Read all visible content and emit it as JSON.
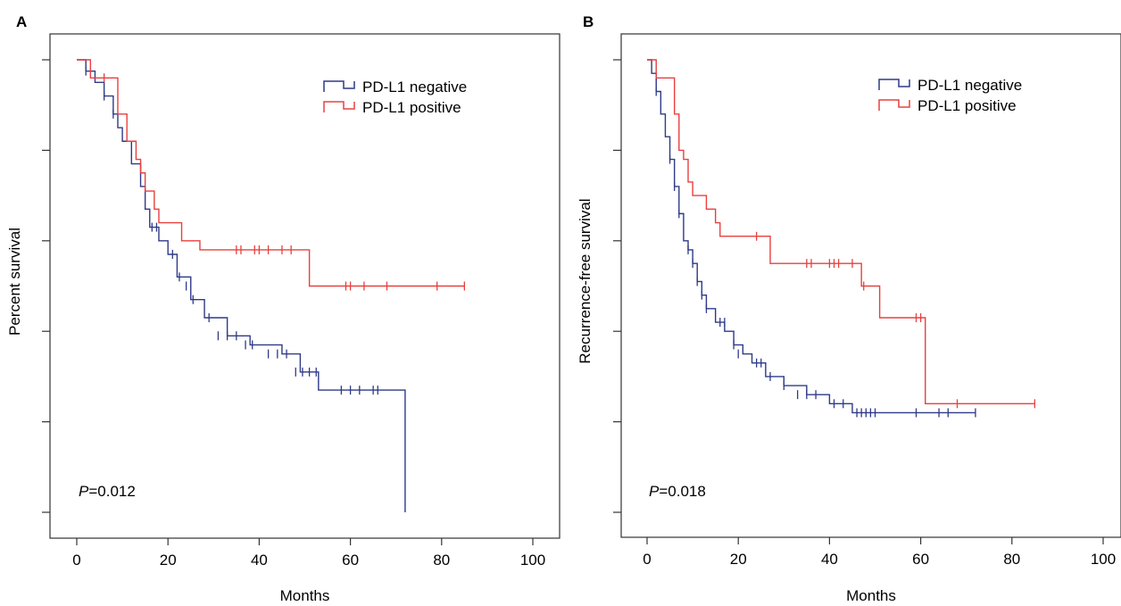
{
  "chart_data": [
    {
      "type": "line",
      "panel_label": "A",
      "xlabel": "Months",
      "ylabel": "Percent survival",
      "xlim": [
        0,
        100
      ],
      "ylim": [
        0,
        1
      ],
      "x_ticks": [
        0,
        20,
        40,
        60,
        80,
        100
      ],
      "y_ticks_unlabeled": [
        0,
        0.2,
        0.4,
        0.6,
        0.8,
        1.0
      ],
      "grid": false,
      "legend_position": "top-right",
      "annotation": {
        "italic": "P",
        "text": "=0.012"
      },
      "series": [
        {
          "name": "PD-L1 negative",
          "color": "#2e3a87",
          "steps": [
            [
              0,
              1.0
            ],
            [
              2,
              0.975
            ],
            [
              4,
              0.95
            ],
            [
              6,
              0.92
            ],
            [
              8,
              0.88
            ],
            [
              9,
              0.85
            ],
            [
              10,
              0.82
            ],
            [
              12,
              0.77
            ],
            [
              14,
              0.72
            ],
            [
              15,
              0.67
            ],
            [
              16,
              0.63
            ],
            [
              18,
              0.6
            ],
            [
              20,
              0.57
            ],
            [
              22,
              0.52
            ],
            [
              25,
              0.47
            ],
            [
              28,
              0.43
            ],
            [
              33,
              0.39
            ],
            [
              38,
              0.37
            ],
            [
              45,
              0.35
            ],
            [
              49,
              0.31
            ],
            [
              53,
              0.27
            ],
            [
              72,
              0.27
            ],
            [
              72,
              0.0
            ]
          ],
          "censored": [
            [
              2,
              0.975
            ],
            [
              6,
              0.92
            ],
            [
              8,
              0.88
            ],
            [
              16.5,
              0.63
            ],
            [
              17.5,
              0.63
            ],
            [
              21,
              0.57
            ],
            [
              22.5,
              0.52
            ],
            [
              24,
              0.5
            ],
            [
              25.5,
              0.47
            ],
            [
              29,
              0.43
            ],
            [
              31,
              0.39
            ],
            [
              33,
              0.39
            ],
            [
              35,
              0.39
            ],
            [
              37,
              0.37
            ],
            [
              38.5,
              0.37
            ],
            [
              42,
              0.35
            ],
            [
              44,
              0.35
            ],
            [
              46,
              0.35
            ],
            [
              48,
              0.31
            ],
            [
              49.5,
              0.31
            ],
            [
              51,
              0.31
            ],
            [
              52.5,
              0.31
            ],
            [
              58,
              0.27
            ],
            [
              60,
              0.27
            ],
            [
              62,
              0.27
            ],
            [
              65,
              0.27
            ],
            [
              66,
              0.27
            ]
          ]
        },
        {
          "name": "PD-L1 positive",
          "color": "#e8403e",
          "steps": [
            [
              0,
              1.0
            ],
            [
              3,
              0.96
            ],
            [
              9,
              0.88
            ],
            [
              11,
              0.82
            ],
            [
              13,
              0.78
            ],
            [
              14,
              0.75
            ],
            [
              15,
              0.71
            ],
            [
              17,
              0.67
            ],
            [
              18,
              0.64
            ],
            [
              23,
              0.6
            ],
            [
              27,
              0.58
            ],
            [
              51,
              0.5
            ],
            [
              85,
              0.5
            ]
          ],
          "censored": [
            [
              6,
              0.96
            ],
            [
              35,
              0.58
            ],
            [
              36,
              0.58
            ],
            [
              39,
              0.58
            ],
            [
              40,
              0.58
            ],
            [
              42,
              0.58
            ],
            [
              45,
              0.58
            ],
            [
              47,
              0.58
            ],
            [
              59,
              0.5
            ],
            [
              60,
              0.5
            ],
            [
              63,
              0.5
            ],
            [
              68,
              0.5
            ],
            [
              79,
              0.5
            ],
            [
              85,
              0.5
            ]
          ]
        }
      ]
    },
    {
      "type": "line",
      "panel_label": "B",
      "xlabel": "Months",
      "ylabel": "Recurrence-free survival",
      "xlim": [
        0,
        100
      ],
      "ylim": [
        0,
        1
      ],
      "x_ticks": [
        0,
        20,
        40,
        60,
        80,
        100
      ],
      "y_ticks_unlabeled": [
        0,
        0.2,
        0.4,
        0.6,
        0.8,
        1.0
      ],
      "grid": false,
      "legend_position": "top-right",
      "annotation": {
        "italic": "P",
        "text": "=0.018"
      },
      "series": [
        {
          "name": "PD-L1 negative",
          "color": "#2e3a87",
          "steps": [
            [
              0,
              1.0
            ],
            [
              1,
              0.97
            ],
            [
              2,
              0.93
            ],
            [
              3,
              0.88
            ],
            [
              4,
              0.83
            ],
            [
              5,
              0.78
            ],
            [
              6,
              0.72
            ],
            [
              7,
              0.66
            ],
            [
              8,
              0.6
            ],
            [
              9,
              0.58
            ],
            [
              10,
              0.55
            ],
            [
              11,
              0.51
            ],
            [
              12,
              0.48
            ],
            [
              13,
              0.45
            ],
            [
              15,
              0.42
            ],
            [
              17,
              0.4
            ],
            [
              19,
              0.37
            ],
            [
              21,
              0.35
            ],
            [
              23,
              0.33
            ],
            [
              26,
              0.3
            ],
            [
              30,
              0.28
            ],
            [
              35,
              0.26
            ],
            [
              40,
              0.24
            ],
            [
              45,
              0.22
            ],
            [
              72,
              0.22
            ]
          ],
          "censored": [
            [
              2,
              0.93
            ],
            [
              5,
              0.78
            ],
            [
              6,
              0.72
            ],
            [
              7,
              0.66
            ],
            [
              9,
              0.58
            ],
            [
              10,
              0.55
            ],
            [
              11,
              0.51
            ],
            [
              12,
              0.48
            ],
            [
              13,
              0.45
            ],
            [
              16,
              0.42
            ],
            [
              17,
              0.42
            ],
            [
              19,
              0.37
            ],
            [
              20,
              0.35
            ],
            [
              24,
              0.33
            ],
            [
              25,
              0.33
            ],
            [
              27,
              0.3
            ],
            [
              30,
              0.28
            ],
            [
              33,
              0.26
            ],
            [
              35,
              0.26
            ],
            [
              37,
              0.26
            ],
            [
              41,
              0.24
            ],
            [
              43,
              0.24
            ],
            [
              46,
              0.22
            ],
            [
              47,
              0.22
            ],
            [
              48,
              0.22
            ],
            [
              49,
              0.22
            ],
            [
              50,
              0.22
            ],
            [
              59,
              0.22
            ],
            [
              64,
              0.22
            ],
            [
              66,
              0.22
            ],
            [
              72,
              0.22
            ]
          ]
        },
        {
          "name": "PD-L1 positive",
          "color": "#e8403e",
          "steps": [
            [
              0,
              1.0
            ],
            [
              2,
              0.96
            ],
            [
              6,
              0.88
            ],
            [
              7,
              0.8
            ],
            [
              8,
              0.78
            ],
            [
              9,
              0.73
            ],
            [
              10,
              0.7
            ],
            [
              13,
              0.67
            ],
            [
              15,
              0.64
            ],
            [
              16,
              0.61
            ],
            [
              27,
              0.55
            ],
            [
              47,
              0.5
            ],
            [
              51,
              0.43
            ],
            [
              61,
              0.24
            ],
            [
              85,
              0.24
            ]
          ],
          "censored": [
            [
              24,
              0.61
            ],
            [
              35,
              0.55
            ],
            [
              36,
              0.55
            ],
            [
              40,
              0.55
            ],
            [
              41,
              0.55
            ],
            [
              42,
              0.55
            ],
            [
              45,
              0.55
            ],
            [
              47.5,
              0.5
            ],
            [
              59,
              0.43
            ],
            [
              60,
              0.43
            ],
            [
              68,
              0.24
            ],
            [
              85,
              0.24
            ]
          ]
        }
      ]
    }
  ]
}
